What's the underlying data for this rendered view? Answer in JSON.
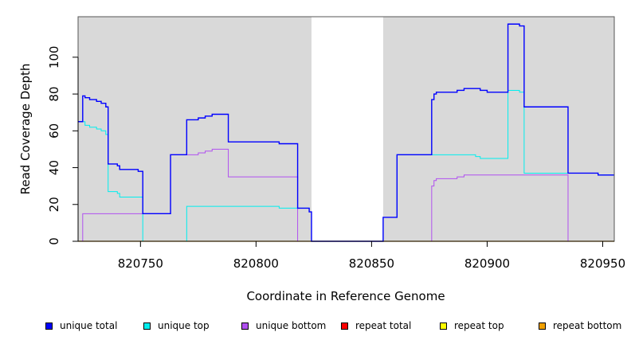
{
  "chart_data": {
    "type": "line",
    "xlabel": "Coordinate in Reference Genome",
    "ylabel": "Read Coverage Depth",
    "xlim": [
      820723,
      820955
    ],
    "ylim": [
      0,
      122
    ],
    "x_ticks": [
      820750,
      820800,
      820850,
      820900,
      820950
    ],
    "y_ticks": [
      0,
      20,
      40,
      60,
      80,
      100
    ],
    "background_color": "#d9d9d9",
    "uncovered_regions": [
      [
        820824,
        820855
      ]
    ],
    "grid": false,
    "legend_position": "bottom",
    "series": [
      {
        "name": "unique total",
        "color": "#0000ff",
        "type": "step",
        "width": 1.4,
        "points": [
          [
            820723,
            65
          ],
          [
            820725,
            79
          ],
          [
            820726,
            78
          ],
          [
            820728,
            77
          ],
          [
            820731,
            76
          ],
          [
            820733,
            75
          ],
          [
            820735,
            73
          ],
          [
            820736,
            42
          ],
          [
            820740,
            41
          ],
          [
            820741,
            39
          ],
          [
            820749,
            38
          ],
          [
            820751,
            15
          ],
          [
            820763,
            47
          ],
          [
            820770,
            66
          ],
          [
            820775,
            67
          ],
          [
            820778,
            68
          ],
          [
            820781,
            69
          ],
          [
            820788,
            54
          ],
          [
            820810,
            53
          ],
          [
            820818,
            18
          ],
          [
            820823,
            16
          ],
          [
            820824,
            0
          ],
          [
            820855,
            13
          ],
          [
            820861,
            47
          ],
          [
            820876,
            77
          ],
          [
            820877,
            80
          ],
          [
            820878,
            81
          ],
          [
            820887,
            82
          ],
          [
            820890,
            83
          ],
          [
            820897,
            82
          ],
          [
            820900,
            81
          ],
          [
            820909,
            118
          ],
          [
            820914,
            117
          ],
          [
            820916,
            73
          ],
          [
            820935,
            37
          ],
          [
            820948,
            36
          ],
          [
            820955,
            36
          ]
        ]
      },
      {
        "name": "unique top",
        "color": "#00eeee",
        "type": "step",
        "width": 1.0,
        "points": [
          [
            820723,
            65
          ],
          [
            820726,
            63
          ],
          [
            820728,
            62
          ],
          [
            820731,
            61
          ],
          [
            820733,
            60
          ],
          [
            820735,
            58
          ],
          [
            820736,
            27
          ],
          [
            820740,
            26
          ],
          [
            820741,
            24
          ],
          [
            820751,
            0
          ],
          [
            820770,
            19
          ],
          [
            820810,
            18
          ],
          [
            820818,
            18
          ],
          [
            820823,
            16
          ],
          [
            820824,
            0
          ],
          [
            820855,
            13
          ],
          [
            820861,
            47
          ],
          [
            820876,
            47
          ],
          [
            820895,
            46
          ],
          [
            820897,
            45
          ],
          [
            820909,
            82
          ],
          [
            820914,
            81
          ],
          [
            820916,
            37
          ],
          [
            820935,
            37
          ],
          [
            820948,
            36
          ],
          [
            820955,
            36
          ]
        ]
      },
      {
        "name": "unique bottom",
        "color": "#b050f0",
        "type": "step",
        "width": 1.0,
        "points": [
          [
            820723,
            0
          ],
          [
            820725,
            15
          ],
          [
            820751,
            15
          ],
          [
            820763,
            47
          ],
          [
            820775,
            48
          ],
          [
            820778,
            49
          ],
          [
            820781,
            50
          ],
          [
            820788,
            35
          ],
          [
            820818,
            0
          ],
          [
            820876,
            30
          ],
          [
            820877,
            33
          ],
          [
            820878,
            34
          ],
          [
            820887,
            35
          ],
          [
            820890,
            36
          ],
          [
            820935,
            0
          ],
          [
            820955,
            0
          ]
        ]
      },
      {
        "name": "repeat total",
        "color": "#ff0000",
        "type": "step",
        "width": 1.0,
        "points": [
          [
            820723,
            0
          ],
          [
            820955,
            0
          ]
        ]
      },
      {
        "name": "repeat top",
        "color": "#ffff00",
        "type": "step",
        "width": 1.0,
        "points": [
          [
            820723,
            0
          ],
          [
            820955,
            0
          ]
        ]
      },
      {
        "name": "repeat bottom",
        "color": "#f0a000",
        "type": "step",
        "width": 1.2,
        "points": [
          [
            820723,
            0
          ],
          [
            820955,
            0
          ]
        ]
      }
    ]
  }
}
